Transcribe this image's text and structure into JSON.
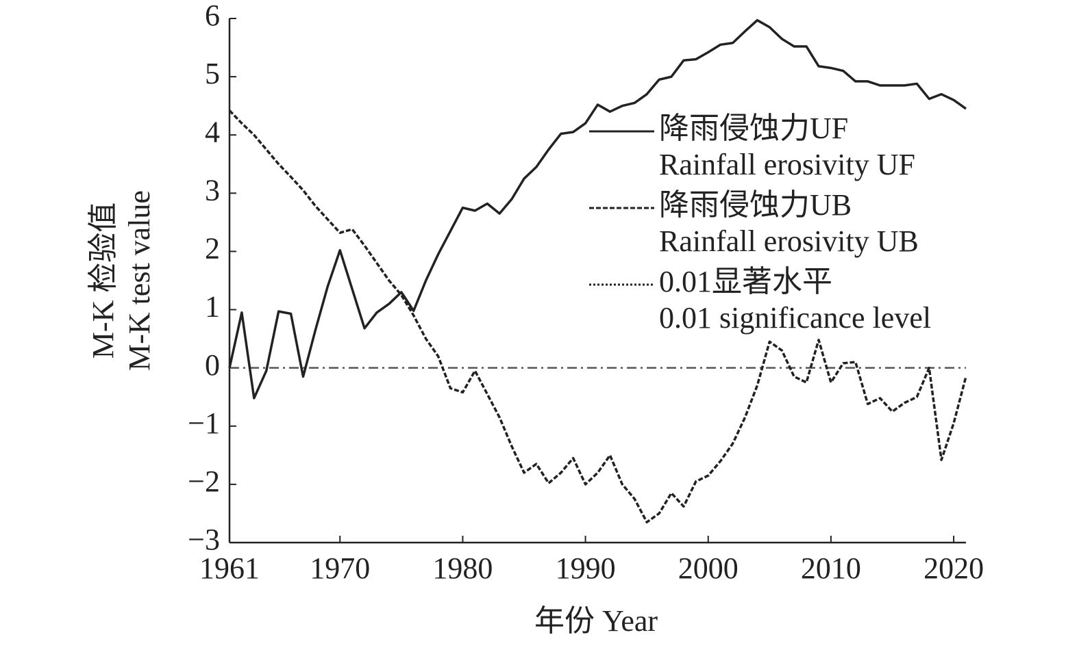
{
  "chart_data": {
    "type": "line",
    "ylabel": [
      "M-K 检验值",
      "M-K test value"
    ],
    "xlabel": "年份 Year",
    "x": [
      1961,
      1962,
      1963,
      1964,
      1965,
      1966,
      1967,
      1968,
      1969,
      1970,
      1971,
      1972,
      1973,
      1974,
      1975,
      1976,
      1977,
      1978,
      1979,
      1980,
      1981,
      1982,
      1983,
      1984,
      1985,
      1986,
      1987,
      1988,
      1989,
      1990,
      1991,
      1992,
      1993,
      1994,
      1995,
      1996,
      1997,
      1998,
      1999,
      2000,
      2001,
      2002,
      2003,
      2004,
      2005,
      2006,
      2007,
      2008,
      2009,
      2010,
      2011,
      2012,
      2013,
      2014,
      2015,
      2016,
      2017,
      2018,
      2019,
      2020,
      2021
    ],
    "series": [
      {
        "name": "降雨侵蚀力UF",
        "name_en": "Rainfall erosivity UF",
        "color": "#222222",
        "dash": "none",
        "values": [
          0,
          0.95,
          -0.52,
          -0.05,
          0.97,
          0.93,
          -0.15,
          0.65,
          1.4,
          2.02,
          1.35,
          0.68,
          0.95,
          1.1,
          1.3,
          0.98,
          1.5,
          1.95,
          2.35,
          2.75,
          2.7,
          2.82,
          2.65,
          2.9,
          3.25,
          3.45,
          3.75,
          4.02,
          4.05,
          4.2,
          4.52,
          4.4,
          4.5,
          4.55,
          4.7,
          4.95,
          5.0,
          5.28,
          5.3,
          5.42,
          5.55,
          5.58,
          5.78,
          5.97,
          5.85,
          5.65,
          5.52,
          5.52,
          5.18,
          5.15,
          5.1,
          4.92,
          4.92,
          4.85,
          4.85,
          4.85,
          4.88,
          4.62,
          4.7,
          4.6,
          4.45
        ]
      },
      {
        "name": "降雨侵蚀力UB",
        "name_en": "Rainfall erosivity UB",
        "color": "#222222",
        "dash": "7,3",
        "values": [
          4.42,
          4.2,
          4.0,
          3.75,
          3.5,
          3.28,
          3.05,
          2.78,
          2.55,
          2.32,
          2.38,
          2.1,
          1.8,
          1.5,
          1.25,
          0.9,
          0.5,
          0.2,
          -0.35,
          -0.42,
          -0.05,
          -0.45,
          -0.85,
          -1.35,
          -1.8,
          -1.65,
          -1.98,
          -1.8,
          -1.55,
          -2.0,
          -1.8,
          -1.5,
          -2.0,
          -2.25,
          -2.65,
          -2.5,
          -2.15,
          -2.38,
          -1.95,
          -1.85,
          -1.6,
          -1.3,
          -0.85,
          -0.3,
          0.45,
          0.3,
          -0.15,
          -0.25,
          0.48,
          -0.25,
          0.08,
          0.1,
          -0.62,
          -0.52,
          -0.75,
          -0.6,
          -0.5,
          0.0,
          -1.58,
          -0.95,
          -0.15
        ]
      }
    ],
    "legend_extra": {
      "name": "0.01显著水平",
      "name_en": "0.01 significance level",
      "dash": "3,3"
    },
    "hline": {
      "value": 0,
      "color": "#555555",
      "dash": "14,6,3,6"
    },
    "xlim": [
      1961,
      2021
    ],
    "xticks": [
      1961,
      1970,
      1980,
      1990,
      2000,
      2010,
      2020
    ],
    "ylim": [
      -3,
      6
    ],
    "yticks": [
      {
        "value": -3,
        "label": "−3"
      },
      {
        "value": -2,
        "label": "−2"
      },
      {
        "value": -1,
        "label": "−1"
      },
      0,
      1,
      2,
      3,
      4,
      5,
      6
    ]
  }
}
